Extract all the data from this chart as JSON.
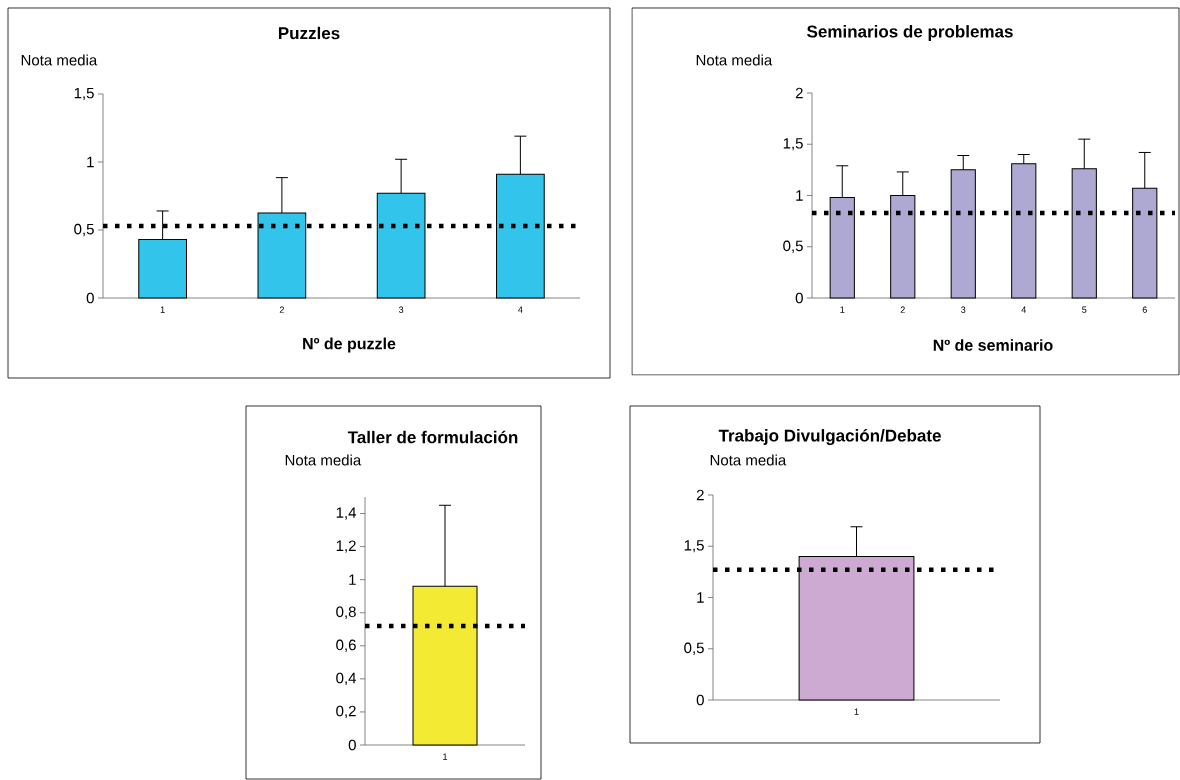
{
  "chart_data": [
    {
      "type": "bar",
      "title": "Puzzles",
      "xlabel": "Nº de puzzle",
      "ylabel": "Nota media",
      "categories": [
        "1",
        "2",
        "3",
        "4"
      ],
      "values": [
        0.43,
        0.625,
        0.77,
        0.91
      ],
      "color": "#33c4ec",
      "errors": [
        [
          0.43,
          0.64
        ],
        [
          0.625,
          0.885
        ],
        [
          0.77,
          1.02
        ],
        [
          0.91,
          1.19
        ]
      ],
      "ylim": [
        0,
        1.5
      ],
      "yticks": [
        0,
        {
          "value": 0.5,
          "label": "0,5"
        },
        1,
        {
          "value": 1.5,
          "label": "1,5"
        }
      ],
      "ref_lines": [
        {
          "axis": "y",
          "value": 0.53,
          "color": "#000000",
          "line_style": "dotted"
        }
      ]
    },
    {
      "type": "bar",
      "title": "Seminarios de problemas",
      "xlabel": "Nº de seminario",
      "ylabel": "Nota media",
      "categories": [
        "1",
        "2",
        "3",
        "4",
        "5",
        "6"
      ],
      "values": [
        0.98,
        1.0,
        1.25,
        1.31,
        1.26,
        1.07
      ],
      "color": "#ada9d3",
      "errors": [
        [
          0.98,
          1.29
        ],
        [
          1.0,
          1.23
        ],
        [
          1.25,
          1.39
        ],
        [
          1.31,
          1.4
        ],
        [
          1.26,
          1.55
        ],
        [
          1.07,
          1.42
        ]
      ],
      "ylim": [
        0,
        2
      ],
      "yticks": [
        0,
        {
          "value": 0.5,
          "label": "0,5"
        },
        1,
        {
          "value": 1.5,
          "label": "1,5"
        },
        2
      ],
      "ref_lines": [
        {
          "axis": "y",
          "value": 0.83,
          "color": "#000000",
          "line_style": "dotted"
        }
      ]
    },
    {
      "type": "bar",
      "title": "Taller de formulación",
      "ylabel": "Nota media",
      "categories": [
        "1"
      ],
      "values": [
        0.96
      ],
      "color": "#f2ea33",
      "errors": [
        [
          0.96,
          1.45
        ]
      ],
      "ylim": [
        0,
        1.5
      ],
      "yticks": [
        0,
        {
          "value": 0.2,
          "label": "0,2"
        },
        {
          "value": 0.4,
          "label": "0,4"
        },
        {
          "value": 0.6,
          "label": "0,6"
        },
        {
          "value": 0.8,
          "label": "0,8"
        },
        1,
        {
          "value": 1.2,
          "label": "1,2"
        },
        {
          "value": 1.4,
          "label": "1,4"
        }
      ],
      "ref_lines": [
        {
          "axis": "y",
          "value": 0.72,
          "color": "#000000",
          "line_style": "dotted"
        }
      ]
    },
    {
      "type": "bar",
      "title": "Trabajo Divulgación/Debate",
      "ylabel": "Nota media",
      "categories": [
        "1"
      ],
      "values": [
        1.4
      ],
      "color": "#ccaad2",
      "errors": [
        [
          1.4,
          1.69
        ]
      ],
      "ylim": [
        0,
        2
      ],
      "yticks": [
        0,
        {
          "value": 0.5,
          "label": "0,5"
        },
        1,
        {
          "value": 1.5,
          "label": "1,5"
        },
        2
      ],
      "ref_lines": [
        {
          "axis": "y",
          "value": 1.27,
          "color": "#000000",
          "line_style": "dotted"
        }
      ]
    }
  ]
}
